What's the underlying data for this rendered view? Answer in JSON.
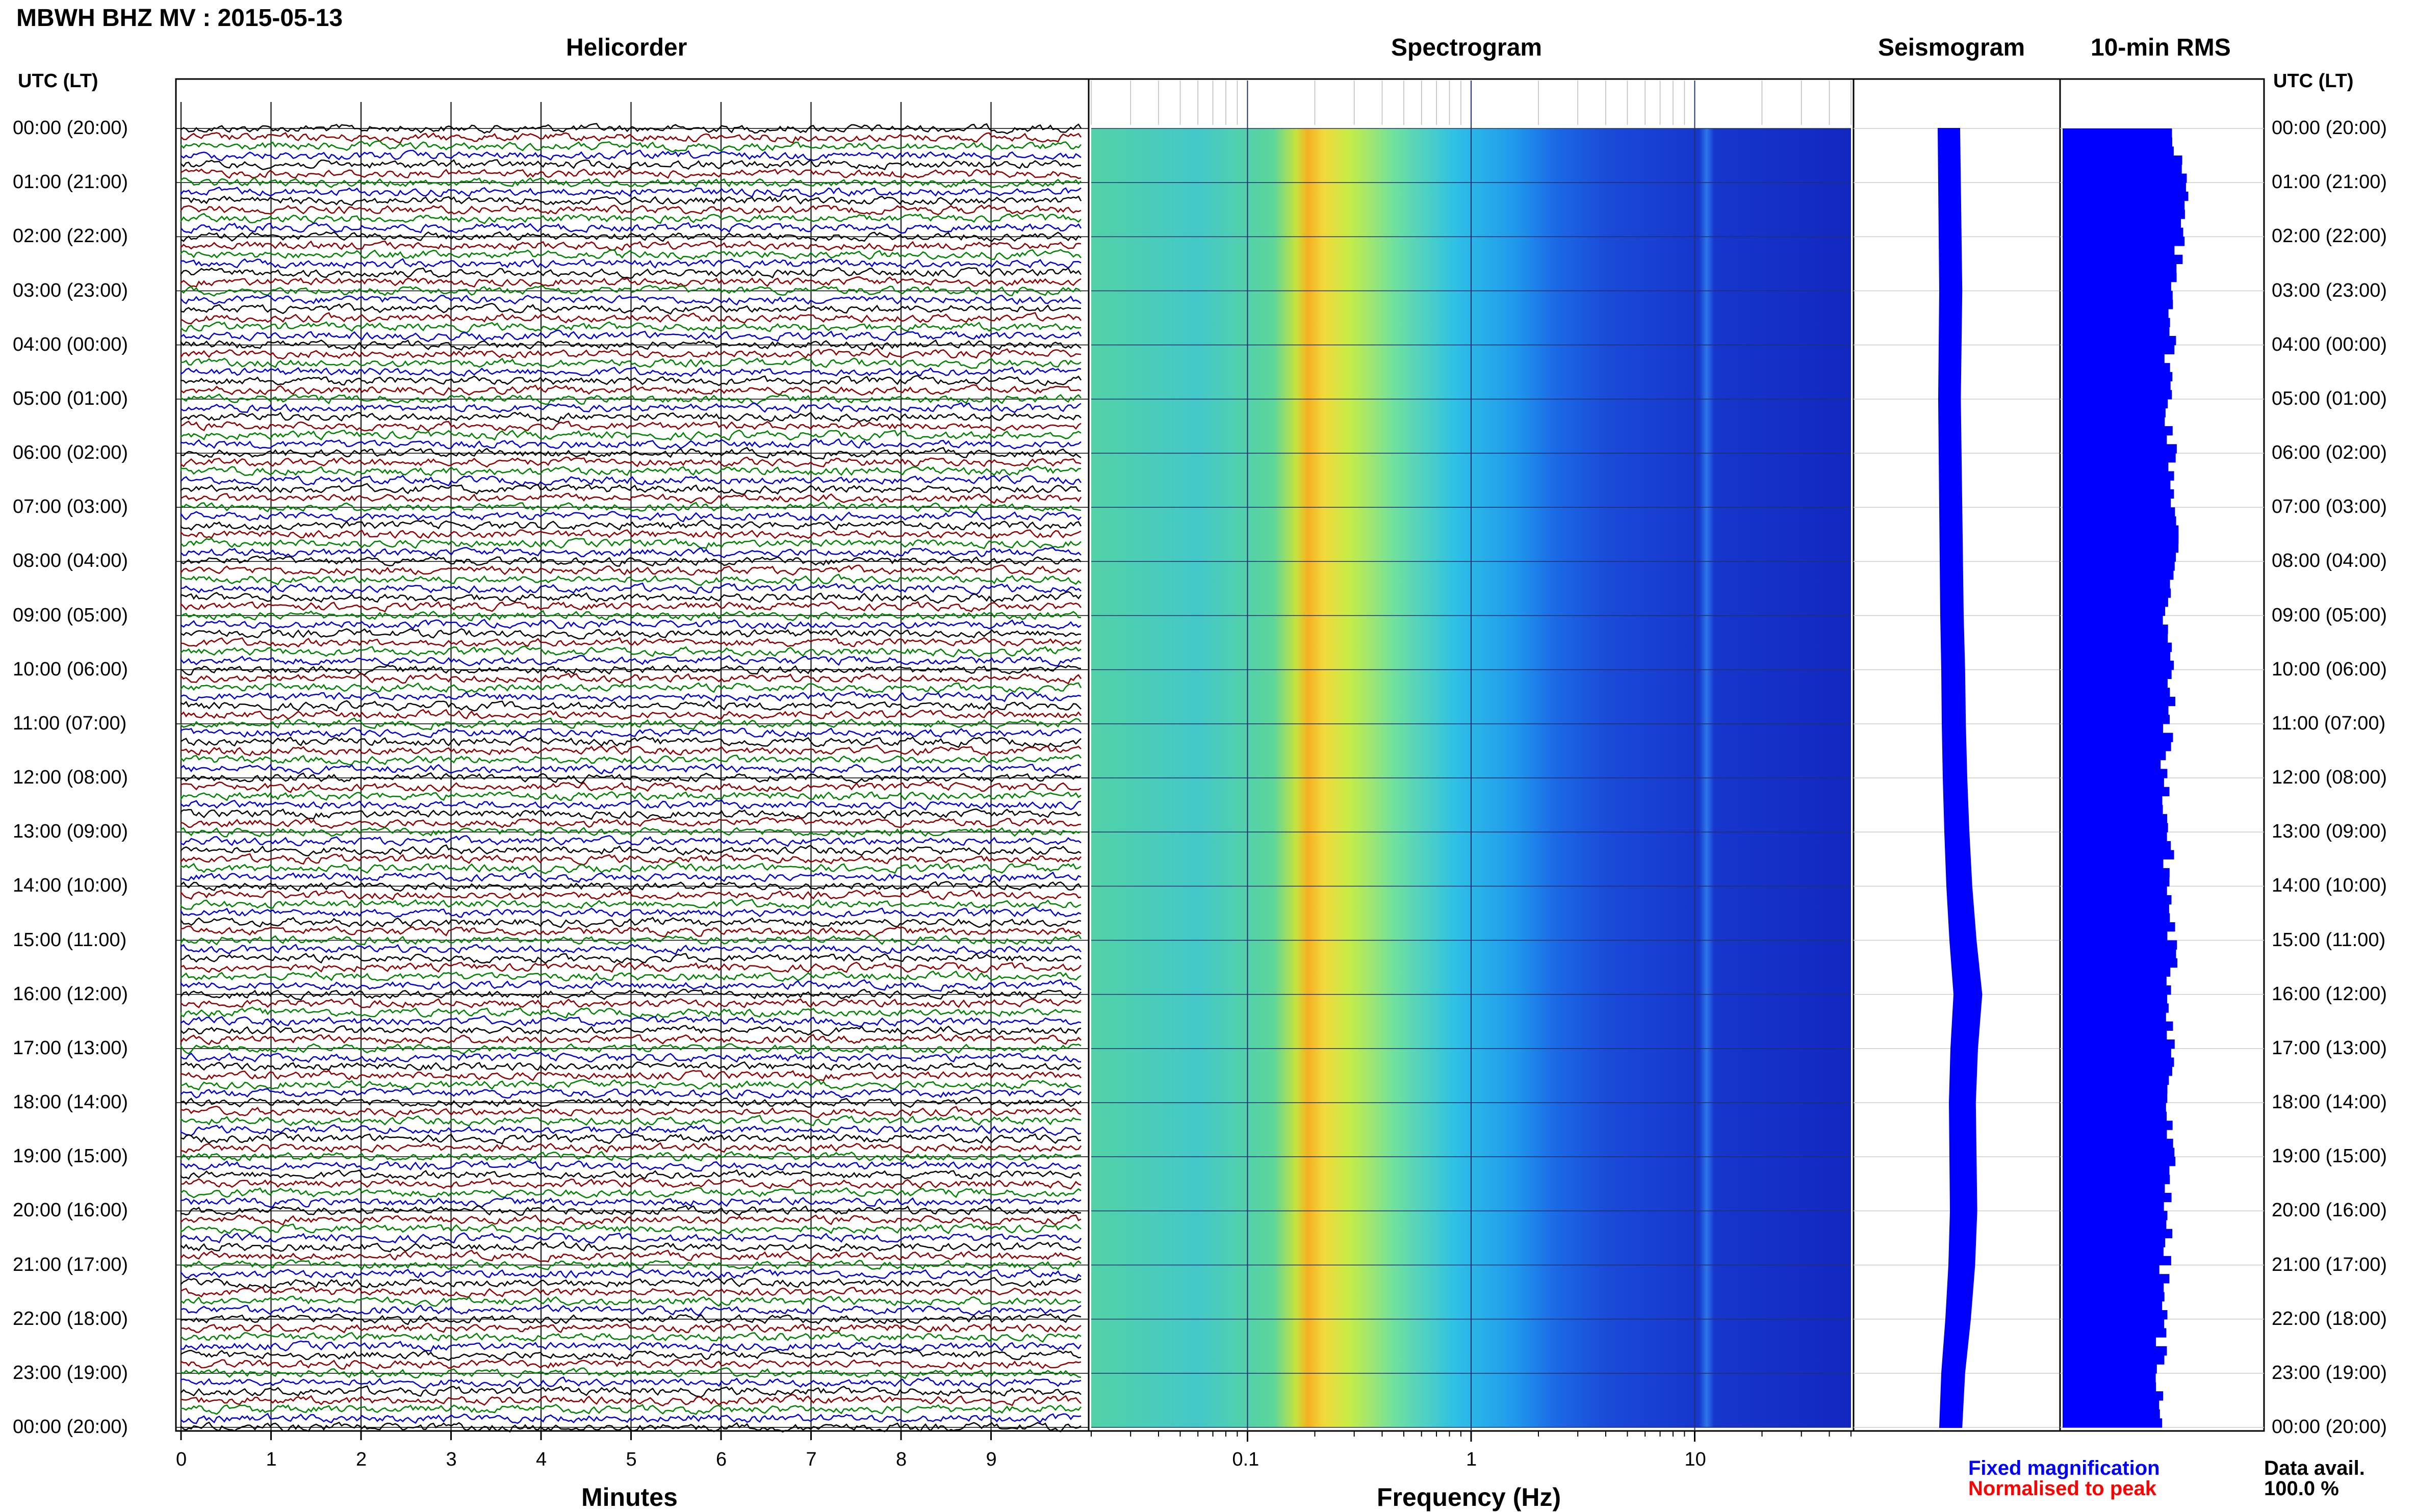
{
  "header": {
    "station_title": "MBWH BHZ MV : 2015-05-13",
    "utc_lt_label": "UTC (LT)"
  },
  "panels": {
    "helicorder": "Helicorder",
    "spectrogram": "Spectrogram",
    "seismogram": "Seismogram",
    "rms": "10-min RMS"
  },
  "legend": {
    "fixed": "Fixed magnification",
    "normalised": "Normalised to peak",
    "data_avail_label": "Data avail.",
    "data_avail_value": "100.0 %"
  },
  "colors": {
    "trace_cycle": [
      "#000000",
      "#8b0000",
      "#008000",
      "#0000cd"
    ],
    "fixed": "#0000ff",
    "normalised": "#ff0000",
    "rms_bar": "#0000ff",
    "seismogram": "#0000ff"
  },
  "chart_data": [
    {
      "type": "line",
      "name": "helicorder",
      "title": "Helicorder",
      "xlabel": "Minutes",
      "x_ticks": [
        "0",
        "1",
        "2",
        "3",
        "4",
        "5",
        "6",
        "7",
        "8",
        "9"
      ],
      "xlim": [
        0,
        10
      ],
      "row_labels": [
        "00:00 (20:00)",
        "01:00 (21:00)",
        "02:00 (22:00)",
        "03:00 (23:00)",
        "04:00 (00:00)",
        "05:00 (01:00)",
        "06:00 (02:00)",
        "07:00 (03:00)",
        "08:00 (04:00)",
        "09:00 (05:00)",
        "10:00 (06:00)",
        "11:00 (07:00)",
        "12:00 (08:00)",
        "13:00 (09:00)",
        "14:00 (10:00)",
        "15:00 (11:00)",
        "16:00 (12:00)",
        "17:00 (13:00)",
        "18:00 (14:00)",
        "19:00 (15:00)",
        "20:00 (16:00)",
        "21:00 (17:00)",
        "22:00 (18:00)",
        "23:00 (19:00)",
        "00:00 (20:00)"
      ],
      "traces_per_hour": 6,
      "grid": true
    },
    {
      "type": "heatmap",
      "name": "spectrogram",
      "title": "Spectrogram",
      "xlabel": "Frequency (Hz)",
      "x_scale": "log",
      "x_ticks": [
        "0.1",
        "1",
        "10"
      ],
      "xlim": [
        0.02,
        50
      ]
    },
    {
      "type": "line",
      "name": "seismogram",
      "title": "Seismogram",
      "relative_width": [
        0.35,
        0.36,
        0.37,
        0.38,
        0.37,
        0.36,
        0.37,
        0.38,
        0.39,
        0.4,
        0.42,
        0.43,
        0.45,
        0.48,
        0.52,
        0.58,
        0.66,
        0.6,
        0.57,
        0.58,
        0.59,
        0.56,
        0.5,
        0.42,
        0.38
      ]
    },
    {
      "type": "bar",
      "name": "rms",
      "title": "10-min RMS",
      "relative_values": [
        0.55,
        0.6,
        0.57,
        0.55,
        0.53,
        0.52,
        0.54,
        0.55,
        0.56,
        0.51,
        0.53,
        0.52,
        0.5,
        0.52,
        0.52,
        0.54,
        0.53,
        0.54,
        0.51,
        0.53,
        0.52,
        0.5,
        0.49,
        0.48,
        0.47
      ]
    }
  ]
}
